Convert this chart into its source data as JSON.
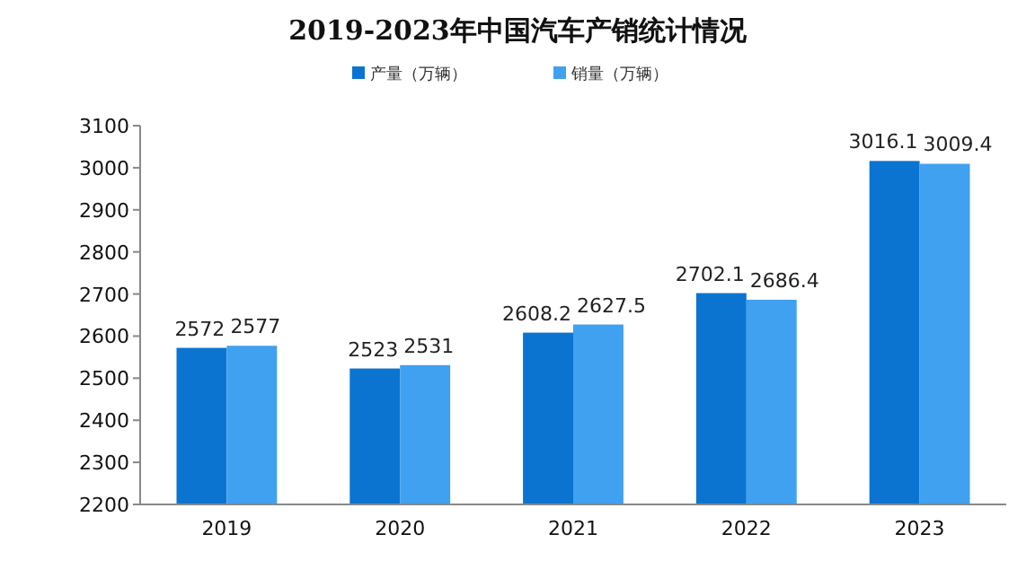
{
  "chart_data": {
    "type": "bar",
    "title": "2019-2023年中国汽车产销统计情况",
    "categories": [
      "2019",
      "2020",
      "2021",
      "2022",
      "2023"
    ],
    "series": [
      {
        "name": "产量（万辆）",
        "color": "#0b74d0",
        "values": [
          2572,
          2523,
          2608.2,
          2702.1,
          3016.1
        ]
      },
      {
        "name": "销量（万辆）",
        "color": "#3fa1f0",
        "values": [
          2577,
          2531,
          2627.5,
          2686.4,
          3009.4
        ]
      }
    ],
    "ylim": [
      2200,
      3100
    ],
    "yticks": [
      2200,
      2300,
      2400,
      2500,
      2600,
      2700,
      2800,
      2900,
      3000,
      3100
    ],
    "grid": false,
    "legend": "top",
    "data_labels": true
  }
}
